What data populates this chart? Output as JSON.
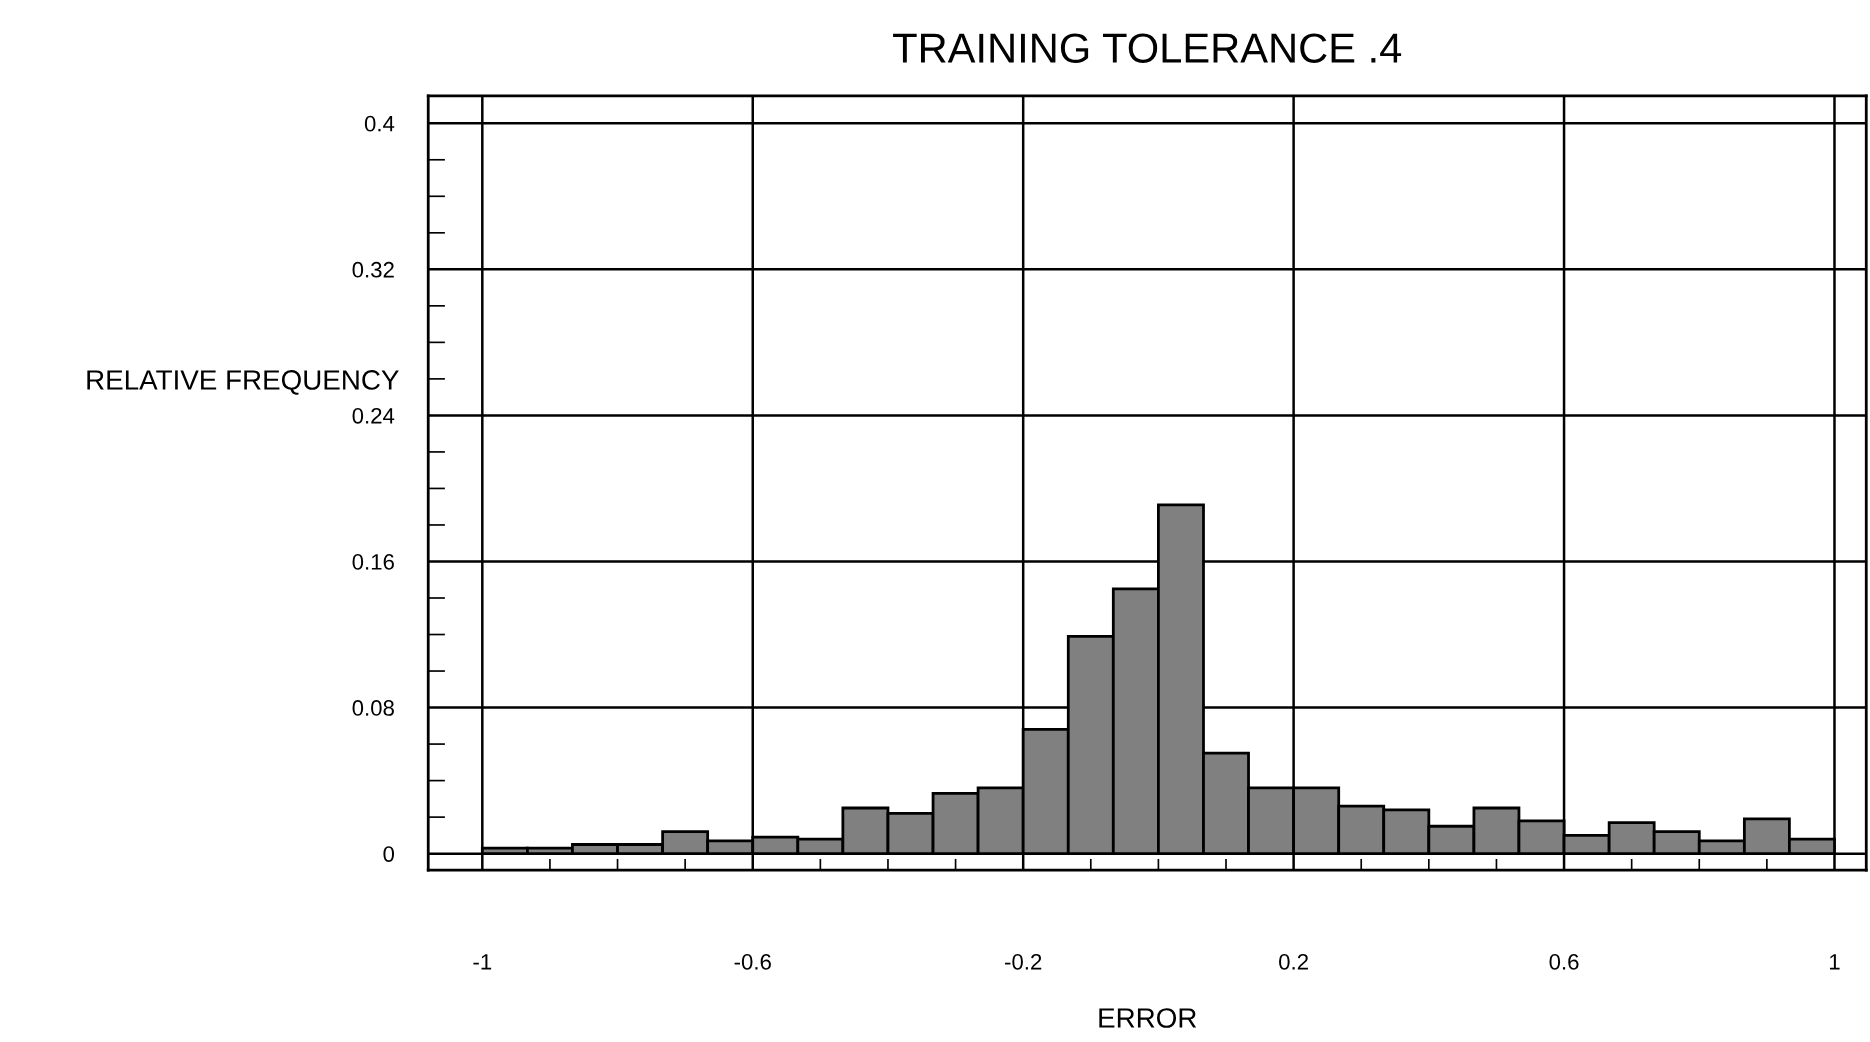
{
  "chart_data": {
    "type": "histogram",
    "title": "TRAINING TOLERANCE .4",
    "xlabel": "ERROR",
    "ylabel": "RELATIVE FREQUENCY",
    "bins": [
      -1,
      -0.9333,
      -0.8667,
      -0.8,
      -0.7333,
      -0.6667,
      -0.6,
      -0.5333,
      -0.4667,
      -0.4,
      -0.3333,
      -0.2667,
      -0.2,
      -0.1333,
      -0.0667,
      0,
      0.0667,
      0.1333,
      0.2,
      0.2667,
      0.3333,
      0.4,
      0.4667,
      0.5333,
      0.6,
      0.6667,
      0.7333,
      0.8,
      0.8667,
      0.9333,
      1
    ],
    "values": [
      0.003,
      0.003,
      0.005,
      0.005,
      0.012,
      0.007,
      0.009,
      0.008,
      0.025,
      0.022,
      0.033,
      0.036,
      0.068,
      0.119,
      0.145,
      0.191,
      0.055,
      0.036,
      0.036,
      0.026,
      0.024,
      0.015,
      0.025,
      0.018,
      0.01,
      0.017,
      0.012,
      0.007,
      0.019,
      0.008
    ],
    "color": "#808080",
    "xlim": [
      -1.08,
      1.047
    ],
    "ylim": [
      -0.009,
      0.415
    ],
    "xticks": [
      -1,
      -0.6,
      -0.2,
      0.2,
      0.6,
      1
    ],
    "yticks": [
      0,
      0.08,
      0.16,
      0.24,
      0.32,
      0.4
    ],
    "grid": true
  }
}
